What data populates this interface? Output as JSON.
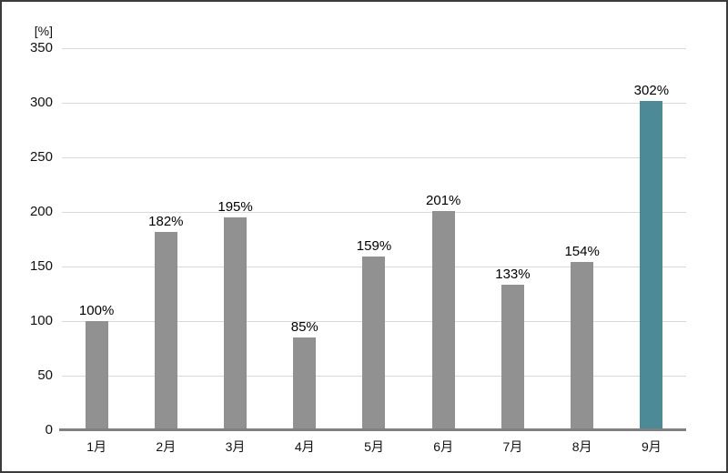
{
  "chart_data": {
    "type": "bar",
    "title": "",
    "unit_label": "[%]",
    "categories": [
      "1月",
      "2月",
      "3月",
      "4月",
      "5月",
      "6月",
      "7月",
      "8月",
      "9月"
    ],
    "values": [
      100,
      182,
      195,
      85,
      159,
      201,
      133,
      154,
      302
    ],
    "value_labels": [
      "100%",
      "182%",
      "195%",
      "85%",
      "159%",
      "201%",
      "133%",
      "154%",
      "302%"
    ],
    "yticks": [
      350,
      300,
      250,
      200,
      150,
      100,
      50,
      0
    ],
    "ylim": [
      0,
      350
    ],
    "grid": "horizontal",
    "legend": "none",
    "highlight_index": 8,
    "colors": {
      "bar": "#919191",
      "highlight": "#4B8A96",
      "gridline": "#D9D9D9",
      "axis": "#808080",
      "text": "#111111"
    }
  }
}
